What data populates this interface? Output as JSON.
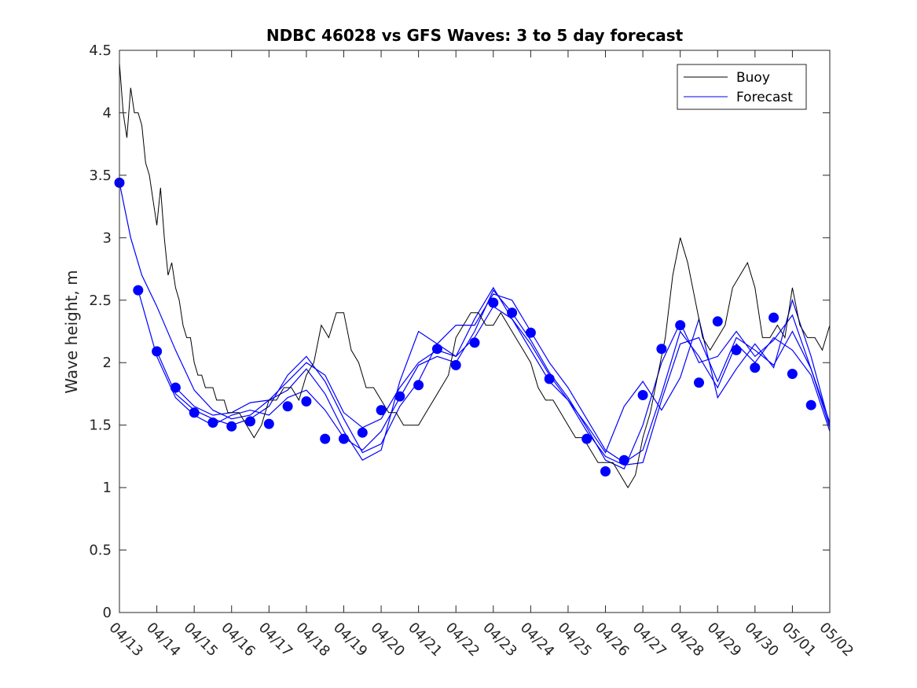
{
  "chart_data": {
    "type": "line",
    "title": "NDBC 46028 vs GFS Waves: 3 to 5 day forecast",
    "xlabel": "",
    "ylabel": "Wave height, m",
    "xlim": [
      "04/13",
      "05/02"
    ],
    "ylim": [
      0,
      4.5
    ],
    "x_tick_labels": [
      "04/13",
      "04/14",
      "04/15",
      "04/16",
      "04/17",
      "04/18",
      "04/19",
      "04/20",
      "04/21",
      "04/22",
      "04/23",
      "04/24",
      "04/25",
      "04/26",
      "04/27",
      "04/28",
      "04/29",
      "04/30",
      "05/01",
      "05/02"
    ],
    "y_tick_labels": [
      "0",
      "0.5",
      "1",
      "1.5",
      "2",
      "2.5",
      "3",
      "3.5",
      "4",
      "4.5"
    ],
    "y_ticks": [
      0,
      0.5,
      1,
      1.5,
      2,
      2.5,
      3,
      3.5,
      4,
      4.5
    ],
    "legend": {
      "position": "top-right",
      "entries": [
        "Buoy",
        "Forecast"
      ]
    },
    "colors": {
      "buoy": "#000000",
      "forecast": "#0000ff"
    },
    "buoy": {
      "name": "Buoy",
      "x": [
        0,
        0.1,
        0.2,
        0.3,
        0.4,
        0.5,
        0.6,
        0.7,
        0.8,
        0.9,
        1.0,
        1.1,
        1.2,
        1.3,
        1.4,
        1.5,
        1.6,
        1.7,
        1.8,
        1.9,
        2.0,
        2.1,
        2.2,
        2.3,
        2.4,
        2.5,
        2.6,
        2.7,
        2.8,
        2.9,
        3.0,
        3.2,
        3.4,
        3.6,
        3.8,
        4.0,
        4.2,
        4.4,
        4.6,
        4.8,
        5.0,
        5.2,
        5.4,
        5.6,
        5.8,
        6.0,
        6.2,
        6.4,
        6.6,
        6.8,
        7.0,
        7.2,
        7.4,
        7.6,
        7.8,
        8.0,
        8.2,
        8.4,
        8.6,
        8.8,
        9.0,
        9.2,
        9.4,
        9.6,
        9.8,
        10.0,
        10.2,
        10.4,
        10.6,
        10.8,
        11.0,
        11.2,
        11.4,
        11.6,
        11.8,
        12.0,
        12.2,
        12.4,
        12.6,
        12.8,
        13.0,
        13.2,
        13.4,
        13.6,
        13.8,
        14.0,
        14.2,
        14.4,
        14.6,
        14.8,
        15.0,
        15.2,
        15.4,
        15.6,
        15.8,
        16.0,
        16.2,
        16.4,
        16.6,
        16.8,
        17.0,
        17.2,
        17.4,
        17.6,
        17.8,
        18.0,
        18.2,
        18.4,
        18.6,
        18.8,
        19.0
      ],
      "y": [
        4.4,
        4.0,
        3.8,
        4.2,
        4.0,
        4.0,
        3.9,
        3.6,
        3.5,
        3.3,
        3.1,
        3.4,
        3.0,
        2.7,
        2.8,
        2.6,
        2.5,
        2.3,
        2.2,
        2.2,
        2.0,
        1.9,
        1.9,
        1.8,
        1.8,
        1.8,
        1.7,
        1.7,
        1.7,
        1.6,
        1.6,
        1.6,
        1.5,
        1.4,
        1.5,
        1.7,
        1.7,
        1.8,
        1.8,
        1.7,
        1.9,
        2.0,
        2.3,
        2.2,
        2.4,
        2.4,
        2.1,
        2.0,
        1.8,
        1.8,
        1.7,
        1.6,
        1.6,
        1.5,
        1.5,
        1.5,
        1.6,
        1.7,
        1.8,
        1.9,
        2.2,
        2.3,
        2.4,
        2.4,
        2.3,
        2.3,
        2.4,
        2.3,
        2.2,
        2.1,
        2.0,
        1.8,
        1.7,
        1.7,
        1.6,
        1.5,
        1.4,
        1.4,
        1.3,
        1.2,
        1.2,
        1.2,
        1.1,
        1.0,
        1.1,
        1.4,
        1.6,
        1.9,
        2.2,
        2.7,
        3.0,
        2.8,
        2.5,
        2.2,
        2.1,
        2.2,
        2.3,
        2.6,
        2.7,
        2.8,
        2.6,
        2.2,
        2.2,
        2.3,
        2.2,
        2.6,
        2.3,
        2.2,
        2.2,
        2.1,
        2.3
      ]
    },
    "forecast_markers": {
      "name": "Forecast",
      "x": [
        0,
        0.5,
        1,
        1.5,
        2,
        2.5,
        3,
        3.5,
        4,
        4.5,
        5,
        5.5,
        6,
        6.5,
        7,
        7.5,
        8,
        8.5,
        9,
        9.5,
        10,
        10.5,
        11,
        11.5,
        12,
        12.5,
        13,
        13.5,
        14,
        14.5,
        15,
        15.5,
        16,
        16.5,
        17,
        17.5,
        18,
        18.5
      ],
      "y": [
        3.44,
        2.58,
        2.09,
        1.8,
        1.6,
        1.52,
        1.49,
        1.53,
        1.51,
        1.65,
        1.69,
        1.39,
        1.39,
        1.44,
        1.62,
        1.73,
        1.82,
        2.11,
        1.98,
        2.16,
        2.48,
        2.4,
        2.24,
        1.87,
        null,
        1.39,
        1.13,
        1.22,
        1.74,
        2.11,
        2.3,
        1.84,
        2.33,
        2.1,
        1.96,
        2.36,
        1.91,
        1.66
      ]
    },
    "forecast_runs": [
      {
        "x": [
          0,
          0.3,
          0.6,
          1.0,
          1.5,
          2.0,
          2.5,
          3.0,
          3.5,
          4.0,
          4.5,
          5.0,
          5.5,
          6.0,
          6.5,
          7.0,
          7.5,
          8.0,
          8.5,
          9.0,
          9.5,
          10.0,
          10.5,
          11.0,
          11.5,
          12.0,
          12.5,
          13.0,
          13.5,
          14.0,
          14.5,
          15.0,
          15.5,
          16.0,
          16.5,
          17.0,
          17.5,
          18.0,
          18.5,
          19.0
        ],
        "y": [
          3.44,
          3.0,
          2.7,
          2.45,
          2.1,
          1.78,
          1.62,
          1.55,
          1.58,
          1.7,
          1.85,
          2.0,
          1.9,
          1.6,
          1.48,
          1.55,
          1.8,
          2.0,
          2.1,
          2.05,
          2.2,
          2.45,
          2.35,
          2.15,
          1.9,
          1.7,
          1.45,
          1.25,
          1.18,
          1.2,
          1.7,
          2.15,
          2.2,
          1.85,
          2.2,
          2.1,
          1.98,
          2.25,
          1.95,
          1.52
        ]
      },
      {
        "x": [
          0.5,
          1.0,
          1.5,
          2.0,
          2.5,
          3.0,
          3.5,
          4.0,
          4.5,
          5.0,
          5.5,
          6.0,
          6.5,
          7.0,
          7.5,
          8.0,
          8.5,
          9.0,
          9.5,
          10.0,
          10.5,
          11.0,
          11.5,
          12.0,
          12.5,
          13.0,
          13.5,
          14.0,
          14.5,
          15.0,
          15.5,
          16.0,
          16.5,
          17.0,
          17.5,
          18.0,
          18.5,
          19.0
        ],
        "y": [
          2.58,
          2.05,
          1.72,
          1.58,
          1.5,
          1.58,
          1.62,
          1.58,
          1.72,
          1.78,
          1.62,
          1.4,
          1.3,
          1.45,
          1.72,
          1.98,
          2.05,
          2.0,
          2.25,
          2.58,
          2.4,
          2.18,
          1.92,
          1.72,
          1.48,
          1.22,
          1.15,
          1.5,
          2.0,
          2.32,
          2.0,
          2.05,
          2.25,
          2.05,
          2.18,
          2.38,
          1.95,
          1.48
        ]
      },
      {
        "x": [
          1.0,
          1.5,
          2.0,
          2.5,
          3.0,
          3.5,
          4.0,
          4.5,
          5.0,
          5.5,
          6.0,
          6.5,
          7.0,
          7.5,
          8.0,
          8.5,
          9.0,
          9.5,
          10.0,
          10.5,
          11.0,
          11.5,
          12.0,
          12.5,
          13.0,
          13.5,
          14.0,
          14.5,
          15.0,
          15.5,
          16.0,
          16.5,
          17.0,
          17.5,
          18.0,
          18.5,
          19.0
        ],
        "y": [
          2.09,
          1.75,
          1.62,
          1.55,
          1.5,
          1.55,
          1.65,
          1.9,
          2.05,
          1.85,
          1.55,
          1.28,
          1.35,
          1.65,
          1.85,
          2.15,
          2.3,
          2.3,
          2.55,
          2.5,
          2.25,
          2.0,
          1.8,
          1.55,
          1.3,
          1.2,
          1.3,
          1.75,
          2.25,
          2.05,
          1.8,
          2.15,
          2.0,
          2.2,
          2.1,
          1.9,
          1.45
        ]
      },
      {
        "x": [
          1.5,
          2.0,
          2.5,
          3.0,
          3.5,
          4.0,
          4.5,
          5.0,
          5.5,
          6.0,
          6.5,
          7.0,
          7.5,
          8.0,
          8.5,
          9.0,
          9.5,
          10.0,
          10.5,
          11.0,
          11.5,
          12.0,
          12.5,
          13.0,
          13.5,
          14.0,
          14.5,
          15.0,
          15.5,
          16.0,
          16.5,
          17.0,
          17.5,
          18.0,
          18.5,
          19.0
        ],
        "y": [
          1.8,
          1.65,
          1.58,
          1.6,
          1.68,
          1.7,
          1.78,
          1.95,
          1.75,
          1.45,
          1.22,
          1.3,
          1.85,
          2.25,
          2.15,
          2.05,
          2.35,
          2.6,
          2.35,
          2.1,
          1.85,
          1.7,
          1.5,
          1.28,
          1.65,
          1.85,
          1.62,
          1.88,
          2.35,
          1.72,
          1.95,
          2.15,
          1.96,
          2.5,
          2.05,
          1.5
        ]
      }
    ]
  }
}
